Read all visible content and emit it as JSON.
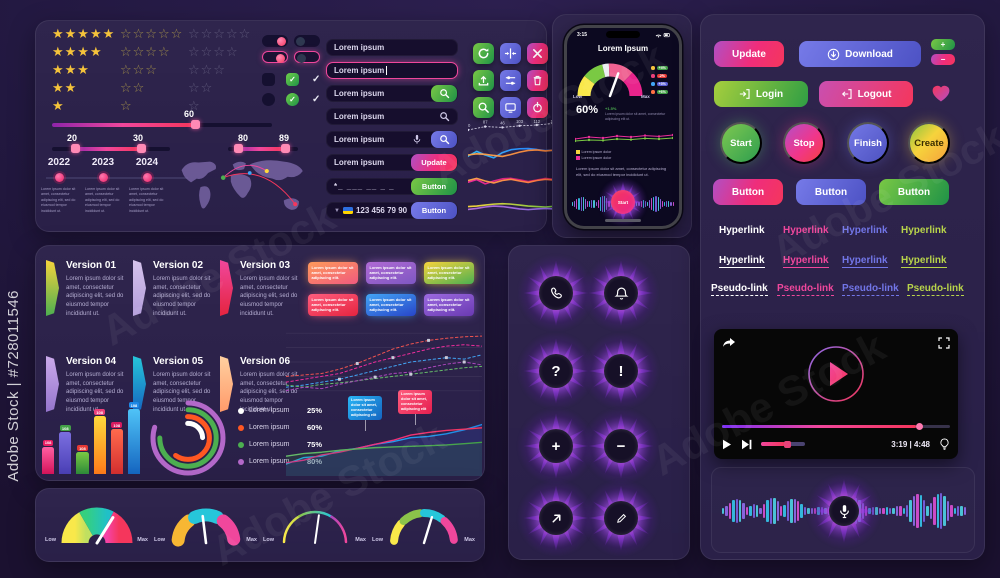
{
  "watermark": {
    "side": "Adobe Stock | #728011546",
    "tile": "Adobe Stock"
  },
  "ratings": {
    "filled_char": "★",
    "empty_char": "☆",
    "rows": [
      5,
      4,
      3,
      2,
      1
    ]
  },
  "sliders": {
    "single_value": "60",
    "range_a_from": "20",
    "range_a_to": "30",
    "range_b_from": "80",
    "range_b_to": "89"
  },
  "timeline": {
    "years": [
      "2022",
      "2023",
      "2024"
    ],
    "caption": "Lorem ipsum dolor sit amet, consectetur adipiscing elit, sed do eiusmod tempor incididunt ut."
  },
  "inputs": {
    "plain": "Lorem ipsum",
    "focused": "Lorem ipsum",
    "search_btn": "Lorem ipsum",
    "search_icon": "Lorem ipsum",
    "voice": "Lorem ipsum",
    "update_value": "Lorem ipsum",
    "update_btn": "Update",
    "masked": "*_ ___ __ _ _",
    "masked_btn": "Button",
    "phone": "123 456 79 90",
    "phone_btn": "Button"
  },
  "phone": {
    "time": "3:15",
    "title": "Lorem Ipsum",
    "low": "Low",
    "max": "Max",
    "value": "60%",
    "delta": "+1.5%",
    "delta_note": "Lorem ipsum dolor sit amet, consectetur adipiscing elit ut.",
    "stats": [
      {
        "value": "+4%",
        "chip": "#43a047",
        "dot": "#f5c33b"
      },
      {
        "value": "-2%",
        "chip": "#e53935",
        "dot": "#ec407a"
      },
      {
        "value": "+3%",
        "chip": "#5c5fd6",
        "dot": "#42a5f5"
      },
      {
        "value": "+6%",
        "chip": "#43a047",
        "dot": "#ff7043"
      }
    ],
    "legend": [
      "Lorem ipsum dolor",
      "Lorem ipsum dolor"
    ],
    "caption": "Lorem ipsum dolor sit amet, consectetur adipiscing elit, sed do eiusmod tempor incididunt ut.",
    "start": "Start"
  },
  "versions": [
    {
      "title": "Version 01",
      "body": "Lorem ipsum dolor sit amet, consectetur adipiscing elit, sed do eiusmod tempor incididunt ut.",
      "c1": "#f6d33c",
      "c2": "#4caf50"
    },
    {
      "title": "Version 02",
      "body": "Lorem ipsum dolor sit amet, consectetur adipiscing elit, sed do eiusmod tempor incididunt ut.",
      "c1": "#d5c3ec",
      "c2": "#b39ddb"
    },
    {
      "title": "Version 03",
      "body": "Lorem ipsum dolor sit amet, consectetur adipiscing elit, sed do eiusmod tempor incididunt ut.",
      "c1": "#f0479c",
      "c2": "#e5243f"
    },
    {
      "title": "Version 04",
      "body": "Lorem ipsum dolor sit amet, consectetur adipiscing elit, sed do eiusmod tempor incididunt ut.",
      "c1": "#cbaaeb",
      "c2": "#9575cd"
    },
    {
      "title": "Version 05",
      "body": "Lorem ipsum dolor sit amet, consectetur adipiscing elit, sed do eiusmod tempor incididunt ut.",
      "c1": "#26c6da",
      "c2": "#1565c0"
    },
    {
      "title": "Version 06",
      "body": "Lorem ipsum dolor sit amet, consectetur adipiscing elit, sed do eiusmod tempor incididunt ut.",
      "c1": "#ffd0a0",
      "c2": "#ff9a6a"
    }
  ],
  "tags": [
    {
      "text": "Lorem ipsum dolor sit amet, consectetur adipiscing elit.",
      "c1": "#ff9a5a",
      "c2": "#f05a7e"
    },
    {
      "text": "Lorem ipsum dolor sit amet, consectetur adipiscing elit.",
      "c1": "#b06ad4",
      "c2": "#7e57c2"
    },
    {
      "text": "Lorem ipsum dolor sit amet, consectetur adipiscing elit.",
      "c1": "#f6d33c",
      "c2": "#4caf50"
    },
    {
      "text": "Lorem ipsum dolor sit amet, consectetur adipiscing elit.",
      "c1": "#ff5d7e",
      "c2": "#e5243f"
    },
    {
      "text": "Lorem ipsum dolor sit amet, consectetur adipiscing elit.",
      "c1": "#42a5f5",
      "c2": "#2845c8"
    },
    {
      "text": "Lorem ipsum dolor sit amet, consectetur adipiscing elit.",
      "c1": "#9c6ae0",
      "c2": "#6a3ab2"
    }
  ],
  "legend": [
    {
      "label": "Lorem ipsum",
      "value": "25%",
      "color": "#ffffff"
    },
    {
      "label": "Lorem ipsum",
      "value": "60%",
      "color": "#ff5722"
    },
    {
      "label": "Lorem ipsum",
      "value": "75%",
      "color": "#4caf50"
    },
    {
      "label": "Lorem ipsum",
      "value": "80%",
      "color": "#b368c9"
    }
  ],
  "gauge_labels": {
    "low": "Low",
    "max": "Max"
  },
  "links": {
    "colors": [
      "#ffffff",
      "#f0479c",
      "#7276e8",
      "#b8d44a"
    ],
    "plain": [
      "Hyperlink",
      "Hyperlink",
      "Hyperlink",
      "Hyperlink"
    ],
    "underline": [
      "Hyperlink",
      "Hyperlink",
      "Hyperlink",
      "Hyperlink"
    ],
    "pseudo": [
      "Pseudo-link",
      "Pseudo-link",
      "Pseudo-link",
      "Pseudo-link"
    ]
  },
  "actions": {
    "update": "Update",
    "download": "Download",
    "plus": "+",
    "minus": "−",
    "login": "Login",
    "logout": "Logout",
    "start": "Start",
    "stop": "Stop",
    "finish": "Finish",
    "create": "Create",
    "button1": "Button",
    "button2": "Button",
    "button3": "Button"
  },
  "glyphs": {
    "question": "?",
    "exclamation": "!",
    "plus": "+",
    "minus": "−"
  },
  "video": {
    "time": "3:19 | 4:48"
  },
  "chart_data": {
    "sparklines": [
      {
        "type": "line",
        "series": [
          {
            "c1": "#d8d5ea",
            "w": 0.8,
            "dash": "1.5 2",
            "dots": true,
            "labels": [
              "10",
              "87",
              "46",
              "103",
              "112",
              "168"
            ],
            "y": [
              55,
              38,
              42,
              34,
              30,
              22
            ]
          }
        ]
      },
      {
        "type": "line",
        "series": [
          {
            "c1": "#29b6f6",
            "c2": "#2979ff",
            "w": 1.6,
            "y": [
              55,
              35,
              50,
              62,
              40,
              28,
              24,
              23,
              27,
              32,
              30
            ]
          },
          {
            "c1": "#f5a24b",
            "c2": "#ef7d3a",
            "w": 1.6,
            "y": [
              50,
              45,
              47,
              52,
              56,
              48,
              38,
              31,
              29,
              33,
              30
            ]
          }
        ]
      },
      {
        "type": "line",
        "series": [
          {
            "c1": "#ec2d9b",
            "c2": "#c2185b",
            "w": 1.6,
            "y": [
              55,
              44,
              62,
              50,
              41,
              39,
              45,
              52,
              46,
              39,
              43
            ]
          },
          {
            "c1": "#f5a24b",
            "c2": "#ff7043",
            "w": 1.6,
            "y": [
              48,
              39,
              50,
              58,
              48,
              43,
              50,
              56,
              48,
              43,
              46
            ]
          }
        ]
      },
      {
        "type": "line",
        "series": [
          {
            "c1": "#f6d33c",
            "c2": "#7ac943",
            "w": 1.6,
            "y": [
              48,
              46,
              42,
              38,
              36,
              38,
              42,
              46,
              48,
              50,
              47
            ]
          },
          {
            "c1": "#b06ad4",
            "c2": "#8e6ae8",
            "w": 1.6,
            "y": [
              60,
              56,
              50,
              46,
              48,
              53,
              58,
              61,
              58,
              56,
              58
            ]
          }
        ]
      }
    ],
    "trend_lines": {
      "type": "line",
      "grid": 5,
      "series": [
        {
          "c1": "#ef5350",
          "w": 1,
          "dash": "2.5 2.5",
          "marks": [
            4,
            8
          ],
          "y": [
            70,
            68,
            66,
            60,
            52,
            42,
            32,
            25,
            20,
            17,
            15,
            14
          ]
        },
        {
          "c1": "#ec2d9b",
          "w": 1,
          "dash": "2.5 2.5",
          "marks": [
            6
          ],
          "y": [
            78,
            74,
            70,
            66,
            58,
            50,
            44,
            38,
            32,
            28,
            26,
            28
          ]
        },
        {
          "c1": "#42a5f5",
          "w": 1,
          "dash": "2.5 2.5",
          "marks": [
            3,
            9
          ],
          "y": [
            85,
            82,
            78,
            74,
            68,
            62,
            56,
            50,
            47,
            44,
            46,
            40
          ]
        },
        {
          "c1": "#66bb6a",
          "w": 1,
          "dash": "2.5 2.5",
          "marks": [
            7
          ],
          "y": [
            82,
            85,
            81,
            79,
            76,
            73,
            70,
            67,
            64,
            61,
            58,
            56
          ]
        },
        {
          "c1": "#ab47bc",
          "w": 1,
          "dash": "2.5 2.5",
          "marks": [
            5,
            10
          ],
          "y": [
            90,
            85,
            87,
            81,
            76,
            71,
            66,
            64,
            58,
            53,
            50,
            54
          ]
        }
      ]
    },
    "bars": {
      "type": "bar",
      "values": [
        38,
        58,
        30,
        80,
        62,
        92
      ],
      "tags": [
        "108",
        "108",
        "108",
        "108",
        "108",
        "108"
      ],
      "tag_colors": [
        "#e91e63",
        "#43a047",
        "#e53935",
        "#ec407a",
        "#d81b60",
        "#1e88e5"
      ],
      "colors": [
        [
          "#ff5fa2",
          "#d4145a"
        ],
        [
          "#7b6fe0",
          "#4a3fb5"
        ],
        [
          "#7ac943",
          "#2e8b3a"
        ],
        [
          "#ffd93c",
          "#ff7a1a"
        ],
        [
          "#ff6a4d",
          "#d32f2f"
        ],
        [
          "#4fc3f7",
          "#1565c0"
        ]
      ]
    },
    "rings": {
      "type": "rings",
      "w": 5,
      "r0": 35,
      "step": 6.8,
      "items": [
        {
          "pct": 80,
          "color": "#b368c9"
        },
        {
          "pct": 75,
          "color": "#4caf50"
        },
        {
          "pct": 60,
          "color": "#ff5722"
        },
        {
          "pct": 25,
          "color": "#ffffff"
        }
      ]
    },
    "area": {
      "type": "line",
      "series": [
        {
          "c1": "#29b6f6",
          "c2": "#1e88e5",
          "w": 1.4,
          "fill": "rgba(48,63,159,0.35)",
          "y": [
            82,
            72,
            70,
            62,
            58,
            52,
            48,
            42,
            40,
            36,
            30,
            22
          ]
        },
        {
          "c1": "#ec2d9b",
          "c2": "#f5365c",
          "w": 1.4,
          "y": [
            80,
            76,
            68,
            64,
            58,
            52,
            46,
            38,
            34,
            31,
            29,
            27
          ]
        },
        {
          "c1": "#66bb6a",
          "c2": "#43a047",
          "w": 1.4,
          "fill": "rgba(46,125,50,0.18)",
          "y": [
            70,
            66,
            64,
            61,
            59,
            57,
            56,
            55,
            54,
            53,
            51,
            49
          ]
        }
      ],
      "tooltips": [
        {
          "text": "Lorem ipsum dolor sit amet, consectetur adipiscing elit",
          "c1": "#29b6f6",
          "c2": "#1565c0"
        },
        {
          "text": "Lorem ipsum dolor sit amet, consectetur adipiscing elit",
          "c1": "#ff5d7e",
          "c2": "#e51e4f"
        }
      ]
    },
    "gauges": [
      {
        "type": "gauge",
        "r": 22,
        "w": 27,
        "cap": "butt",
        "needle": 58,
        "nlen": 30,
        "nw": 3,
        "segments": [
          {
            "c1": "#f9e84a",
            "c2": "#c0e060",
            "a0": 180,
            "a1": 120
          },
          {
            "c1": "#35d07f",
            "c2": "#20c0c8",
            "a0": 120,
            "a1": 62
          },
          {
            "c1": "#f543a6",
            "c2": "#f5365c",
            "a0": 62,
            "a1": 0
          }
        ]
      },
      {
        "type": "gauge",
        "r": 28,
        "w": 13,
        "cap": "round",
        "needle": 97,
        "nlen": 27,
        "nw": 2.6,
        "segments": [
          {
            "c1": "#f7b733",
            "a0": 174,
            "a1": 128
          },
          {
            "c1": "#26c6da",
            "a0": 114,
            "a1": 66
          },
          {
            "c1": "#f0479c",
            "a0": 52,
            "a1": 8
          }
        ]
      },
      {
        "type": "gauge",
        "r": 31,
        "w": 2.5,
        "cap": "round",
        "needle": 82,
        "nlen": 28,
        "nw": 2,
        "segments": [
          {
            "c1": "#f9e84a",
            "c2": "#c0d840",
            "a0": 178,
            "a1": 120
          },
          {
            "c1": "#8bc34a",
            "c2": "#26c6da",
            "a0": 120,
            "a1": 58
          },
          {
            "c1": "#ab47bc",
            "c2": "#f0479c",
            "a0": 58,
            "a1": 2
          }
        ]
      },
      {
        "type": "gauge",
        "r": 30,
        "w": 8,
        "cap": "round",
        "needle": 73,
        "nlen": 27,
        "nw": 2.4,
        "segments": [
          {
            "c1": "#f9e84a",
            "a0": 176,
            "a1": 140
          },
          {
            "c1": "#8bc34a",
            "a0": 133,
            "a1": 97
          },
          {
            "c1": "#26c6da",
            "a0": 90,
            "a1": 54
          },
          {
            "c1": "#f0479c",
            "a0": 47,
            "a1": 6
          }
        ]
      }
    ],
    "phone_gauge": {
      "type": "gauge",
      "r": 26,
      "w": 13,
      "cap": "butt",
      "needle": 70,
      "nlen": 24,
      "nw": 2.5,
      "segments": [
        {
          "c1": "#f9e84a",
          "a0": 180,
          "a1": 142
        },
        {
          "c1": "#7ac943",
          "a0": 142,
          "a1": 104
        },
        {
          "c1": "#eceff1",
          "a0": 104,
          "a1": 92
        },
        {
          "c1": "#f06292",
          "a0": 92,
          "a1": 46
        },
        {
          "c1": "#e9248c",
          "a0": 46,
          "a1": 0
        }
      ]
    },
    "phone_chart": {
      "type": "line",
      "series": [
        {
          "c1": "#ec2d9b",
          "w": 1,
          "dots": true,
          "y": [
            55,
            45,
            50,
            40,
            45,
            38,
            42,
            35
          ]
        },
        {
          "c1": "#7ac943",
          "w": 1,
          "dots": true,
          "y": [
            65,
            60,
            62,
            55,
            58,
            52,
            55,
            50
          ]
        }
      ]
    }
  }
}
